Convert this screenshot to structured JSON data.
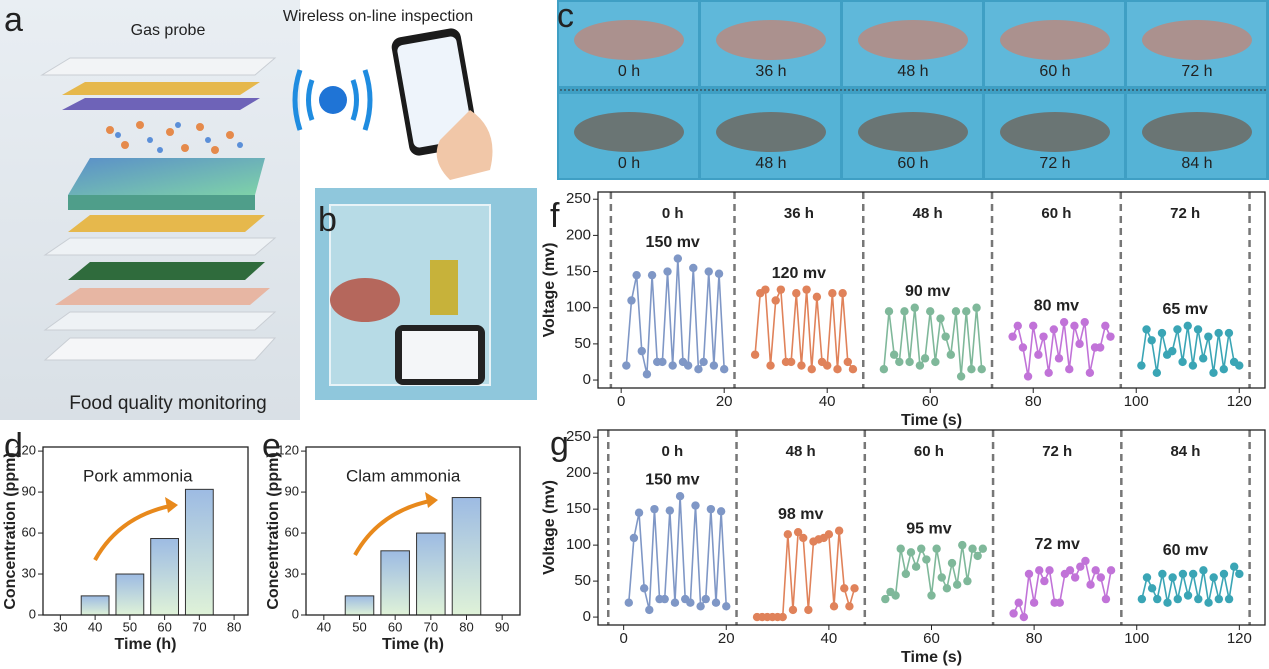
{
  "panels": {
    "letters": [
      "a",
      "b",
      "c",
      "d",
      "e",
      "f",
      "g"
    ],
    "gas_probe": "Gas probe",
    "wireless": "Wireless on-line inspection",
    "monitoring": "Food quality monitoring"
  },
  "photos": {
    "pork": [
      "0 h",
      "36 h",
      "48 h",
      "60 h",
      "72 h"
    ],
    "clam": [
      "0 h",
      "48 h",
      "60 h",
      "72 h",
      "84 h"
    ]
  },
  "chart_data": [
    {
      "type": "bar",
      "title": "Pork ammonia",
      "xlabel": "Time (h)",
      "ylabel": "Concentration (ppm)",
      "x": [
        40,
        50,
        60,
        70
      ],
      "values": [
        14,
        30,
        56,
        92
      ],
      "gradient": [
        "#9dbbe3",
        "#dff2d8"
      ],
      "xlim": [
        25,
        84
      ],
      "xticks": [
        30,
        40,
        50,
        60,
        70,
        80
      ],
      "ylim": [
        0,
        123
      ],
      "yticks": [
        0,
        30,
        60,
        90,
        120
      ]
    },
    {
      "type": "bar",
      "title": "Clam ammonia",
      "xlabel": "Time (h)",
      "ylabel": "Concentration (ppm)",
      "x": [
        50,
        60,
        70,
        80
      ],
      "values": [
        14,
        47,
        60,
        86
      ],
      "gradient": [
        "#9dbbe3",
        "#dff2d8"
      ],
      "xlim": [
        35,
        95
      ],
      "xticks": [
        40,
        50,
        60,
        70,
        80,
        90
      ],
      "ylim": [
        0,
        123
      ],
      "yticks": [
        0,
        30,
        60,
        90,
        120
      ]
    },
    {
      "type": "line",
      "xlabel": "Time (s)",
      "ylabel": "Voltage (mv)",
      "xlim": [
        -4.5,
        125
      ],
      "xticks": [
        0,
        20,
        40,
        60,
        80,
        100,
        120
      ],
      "ylim": [
        -11,
        260
      ],
      "yticks": [
        0,
        50,
        100,
        150,
        200,
        250
      ],
      "separators": [
        -2,
        22,
        47,
        72,
        97,
        122
      ],
      "series": [
        {
          "name": "0 h",
          "label": "150 mv",
          "color": "#7f97c6",
          "x": [
            1,
            2,
            3,
            4,
            5,
            6,
            7,
            8,
            9,
            10,
            11,
            12,
            13,
            14,
            15,
            16,
            17,
            18,
            19,
            20
          ],
          "values": [
            20,
            110,
            145,
            40,
            8,
            145,
            25,
            25,
            150,
            20,
            168,
            25,
            20,
            155,
            15,
            25,
            150,
            20,
            147,
            15
          ]
        },
        {
          "name": "36 h",
          "label": "120 mv",
          "color": "#e0825a",
          "x": [
            26,
            27,
            28,
            29,
            30,
            31,
            32,
            33,
            34,
            35,
            36,
            37,
            38,
            39,
            40,
            41,
            42,
            43,
            44,
            45
          ],
          "values": [
            35,
            120,
            125,
            20,
            110,
            125,
            25,
            25,
            120,
            20,
            125,
            15,
            115,
            25,
            20,
            120,
            15,
            120,
            25,
            15
          ]
        },
        {
          "name": "48 h",
          "label": "90 mv",
          "color": "#7fb89a",
          "x": [
            51,
            52,
            53,
            54,
            55,
            56,
            57,
            58,
            59,
            60,
            61,
            62,
            63,
            64,
            65,
            66,
            67,
            68,
            69,
            70
          ],
          "values": [
            15,
            95,
            35,
            25,
            95,
            25,
            100,
            20,
            30,
            95,
            25,
            85,
            60,
            35,
            95,
            5,
            95,
            15,
            100,
            15
          ]
        },
        {
          "name": "60 h",
          "label": "80 mv",
          "color": "#c173d8",
          "x": [
            76,
            77,
            78,
            79,
            80,
            81,
            82,
            83,
            84,
            85,
            86,
            87,
            88,
            89,
            90,
            91,
            92,
            93,
            94,
            95
          ],
          "values": [
            60,
            75,
            45,
            5,
            75,
            35,
            60,
            10,
            70,
            30,
            80,
            15,
            75,
            50,
            80,
            10,
            45,
            45,
            75,
            60
          ]
        },
        {
          "name": "72 h",
          "label": "65 mv",
          "color": "#3aa5b5",
          "x": [
            101,
            102,
            103,
            104,
            105,
            106,
            107,
            108,
            109,
            110,
            111,
            112,
            113,
            114,
            115,
            116,
            117,
            118,
            119,
            120
          ],
          "values": [
            20,
            70,
            55,
            10,
            65,
            35,
            40,
            70,
            25,
            75,
            20,
            70,
            30,
            60,
            10,
            65,
            15,
            65,
            25,
            20
          ]
        }
      ]
    },
    {
      "type": "line",
      "xlabel": "Time (s)",
      "ylabel": "Voltage (mv)",
      "xlim": [
        -5,
        125
      ],
      "xticks": [
        0,
        20,
        40,
        60,
        80,
        100,
        120
      ],
      "ylim": [
        -11,
        260
      ],
      "yticks": [
        0,
        50,
        100,
        150,
        200,
        250
      ],
      "separators": [
        -3,
        22,
        47,
        72,
        97,
        122
      ],
      "series": [
        {
          "name": "0 h",
          "label": "150 mv",
          "color": "#7f97c6",
          "x": [
            1,
            2,
            3,
            4,
            5,
            6,
            7,
            8,
            9,
            10,
            11,
            12,
            13,
            14,
            15,
            16,
            17,
            18,
            19,
            20
          ],
          "values": [
            20,
            110,
            145,
            40,
            10,
            150,
            25,
            25,
            148,
            20,
            168,
            25,
            20,
            155,
            15,
            25,
            150,
            20,
            147,
            15
          ]
        },
        {
          "name": "48 h",
          "label": "98 mv",
          "color": "#e0825a",
          "x": [
            26,
            27,
            28,
            29,
            30,
            31,
            32,
            33,
            34,
            35,
            36,
            37,
            38,
            39,
            40,
            41,
            42,
            43,
            44,
            45
          ],
          "values": [
            0,
            0,
            0,
            0,
            0,
            0,
            115,
            10,
            118,
            110,
            10,
            105,
            108,
            110,
            115,
            15,
            120,
            40,
            15,
            40
          ]
        },
        {
          "name": "60 h",
          "label": "95 mv",
          "color": "#7fb89a",
          "x": [
            51,
            52,
            53,
            54,
            55,
            56,
            57,
            58,
            59,
            60,
            61,
            62,
            63,
            64,
            65,
            66,
            67,
            68,
            69,
            70
          ],
          "values": [
            25,
            35,
            30,
            95,
            60,
            90,
            70,
            95,
            80,
            30,
            95,
            55,
            40,
            75,
            45,
            100,
            50,
            95,
            85,
            95
          ]
        },
        {
          "name": "72 h",
          "label": "72 mv",
          "color": "#c173d8",
          "x": [
            76,
            77,
            78,
            79,
            80,
            81,
            82,
            83,
            84,
            85,
            86,
            87,
            88,
            89,
            90,
            91,
            92,
            93,
            94,
            95
          ],
          "values": [
            5,
            20,
            0,
            60,
            20,
            65,
            50,
            65,
            20,
            20,
            60,
            65,
            55,
            70,
            78,
            45,
            65,
            55,
            25,
            65
          ]
        },
        {
          "name": "84 h",
          "label": "60 mv",
          "color": "#3aa5b5",
          "x": [
            101,
            102,
            103,
            104,
            105,
            106,
            107,
            108,
            109,
            110,
            111,
            112,
            113,
            114,
            115,
            116,
            117,
            118,
            119,
            120
          ],
          "values": [
            25,
            55,
            40,
            25,
            60,
            20,
            55,
            25,
            60,
            30,
            60,
            25,
            65,
            20,
            55,
            25,
            60,
            25,
            70,
            60
          ]
        }
      ]
    }
  ]
}
